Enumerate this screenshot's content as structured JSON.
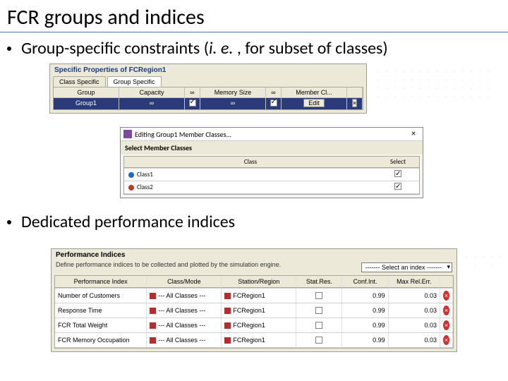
{
  "slide": {
    "title": "FCR groups and indices",
    "bullet1_prefix": "Group-specific constraints (",
    "bullet1_ital": "i. e.",
    "bullet1_suffix": " , for subset of classes)",
    "bullet2": "Dedicated performance indices"
  },
  "panel1": {
    "title": "Specific Properties of FCRegion1",
    "tabs": {
      "a": "Class Specific",
      "b": "Group Specific"
    },
    "cols": {
      "group": "Group",
      "capacity": "Capacity",
      "inf1": "∞",
      "memory": "Memory Size",
      "inf2": "∞",
      "member": "Member Cl..."
    },
    "row": {
      "group": "Group1",
      "capacity": "∞",
      "memory": "∞",
      "edit": "Edit",
      "x": "×"
    }
  },
  "dialog": {
    "title": "Editing Group1 Member Classes...",
    "subtitle": "Select Member Classes",
    "col_class": "Class",
    "col_select": "Select",
    "rows": [
      {
        "name": "Class1",
        "color": "c-blue"
      },
      {
        "name": "Class2",
        "color": "c-red"
      }
    ]
  },
  "panel2": {
    "title": "Performance Indices",
    "sub": "Define performance indices to be collected and plotted by the simulation engine.",
    "select_placeholder": "------- Select an index -------",
    "cols": {
      "pi": "Performance Index",
      "cm": "Class/Mode",
      "sr": "Station/Region",
      "stat": "Stat.Res.",
      "ci": "Conf.Int.",
      "mre": "Max Rel.Err."
    },
    "allclasses": "--- All Classes ---",
    "region": "FCRegion1",
    "rows": [
      {
        "name": "Number of Customers",
        "ci": "0.99",
        "mre": "0.03"
      },
      {
        "name": "Response Time",
        "ci": "0.99",
        "mre": "0.03"
      },
      {
        "name": "FCR Total Weight",
        "ci": "0.99",
        "mre": "0.03"
      },
      {
        "name": "FCR Memory Occupation",
        "ci": "0.99",
        "mre": "0.03"
      }
    ]
  },
  "colors": {
    "accent_line": "#4472c4",
    "win_bg": "#ece9d8",
    "sel_row": "#2a3a7a"
  }
}
